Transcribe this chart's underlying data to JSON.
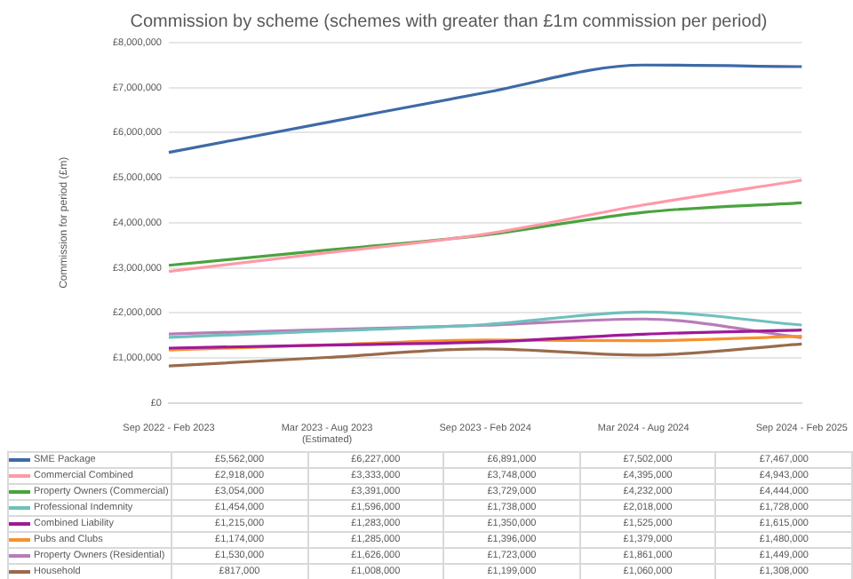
{
  "chart_data": {
    "type": "line",
    "title": "Commission by scheme (schemes with greater than £1m commission per period)",
    "ylabel": "Commission for period (£m)",
    "categories": [
      "Sep 2022 - Feb 2023",
      "Mar 2023 - Aug 2023\n(Estimated)",
      "Sep 2023 - Feb 2024",
      "Mar 2024 - Aug 2024",
      "Sep 2024 - Feb 2025"
    ],
    "ylim": [
      0,
      8000000
    ],
    "yticks": [
      {
        "value": 0,
        "label": "£0"
      },
      {
        "value": 1000000,
        "label": "£1,000,000"
      },
      {
        "value": 2000000,
        "label": "£2,000,000"
      },
      {
        "value": 3000000,
        "label": "£3,000,000"
      },
      {
        "value": 4000000,
        "label": "£4,000,000"
      },
      {
        "value": 5000000,
        "label": "£5,000,000"
      },
      {
        "value": 6000000,
        "label": "£6,000,000"
      },
      {
        "value": 7000000,
        "label": "£7,000,000"
      },
      {
        "value": 8000000,
        "label": "£8,000,000"
      }
    ],
    "grid": "y",
    "legend": "bottom",
    "marker": "none",
    "line_style": "solid",
    "series": [
      {
        "name": "SME Package",
        "color": "#3e6aa6",
        "values": [
          5562000,
          6227000,
          6891000,
          7502000,
          7467000
        ],
        "value_labels": [
          "£5,562,000",
          "£6,227,000",
          "£6,891,000",
          "£7,502,000",
          "£7,467,000"
        ]
      },
      {
        "name": "Commercial Combined",
        "color": "#ff99a8",
        "values": [
          2918000,
          3333000,
          3748000,
          4395000,
          4943000
        ],
        "value_labels": [
          "£2,918,000",
          "£3,333,000",
          "£3,748,000",
          "£4,395,000",
          "£4,943,000"
        ]
      },
      {
        "name": "Property Owners (Commercial)",
        "color": "#4aa33e",
        "values": [
          3054000,
          3391000,
          3729000,
          4232000,
          4444000
        ],
        "value_labels": [
          "£3,054,000",
          "£3,391,000",
          "£3,729,000",
          "£4,232,000",
          "£4,444,000"
        ]
      },
      {
        "name": "Professional Indemnity",
        "color": "#6fc0bc",
        "values": [
          1454000,
          1596000,
          1738000,
          2018000,
          1728000
        ],
        "value_labels": [
          "£1,454,000",
          "£1,596,000",
          "£1,738,000",
          "£2,018,000",
          "£1,728,000"
        ]
      },
      {
        "name": "Combined Liability",
        "color": "#a0199a",
        "values": [
          1215000,
          1283000,
          1350000,
          1525000,
          1615000
        ],
        "value_labels": [
          "£1,215,000",
          "£1,283,000",
          "£1,350,000",
          "£1,525,000",
          "£1,615,000"
        ]
      },
      {
        "name": "Pubs and Clubs",
        "color": "#f7912d",
        "values": [
          1174000,
          1285000,
          1396000,
          1379000,
          1480000
        ],
        "value_labels": [
          "£1,174,000",
          "£1,285,000",
          "£1,396,000",
          "£1,379,000",
          "£1,480,000"
        ]
      },
      {
        "name": "Property Owners (Residential)",
        "color": "#b87cb8",
        "values": [
          1530000,
          1626000,
          1723000,
          1861000,
          1449000
        ],
        "value_labels": [
          "£1,530,000",
          "£1,626,000",
          "£1,723,000",
          "£1,861,000",
          "£1,449,000"
        ]
      },
      {
        "name": "Household",
        "color": "#9a6b4c",
        "values": [
          817000,
          1008000,
          1199000,
          1060000,
          1308000
        ],
        "value_labels": [
          "£817,000",
          "£1,008,000",
          "£1,199,000",
          "£1,060,000",
          "£1,308,000"
        ]
      }
    ]
  }
}
